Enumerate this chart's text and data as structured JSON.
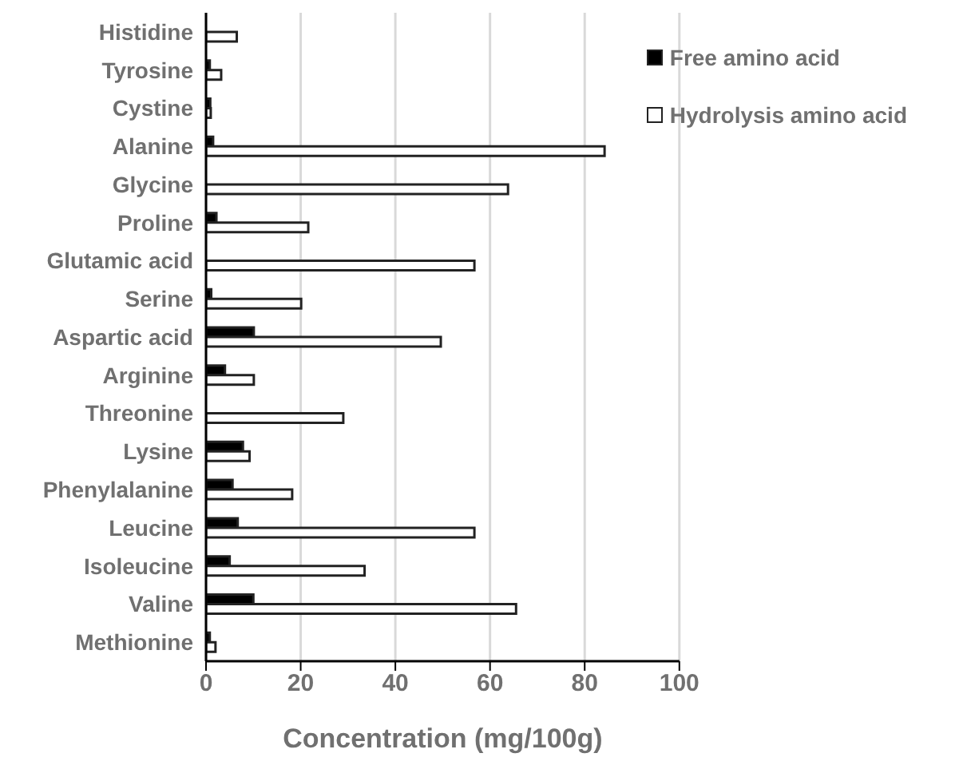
{
  "chart_data": {
    "type": "bar",
    "orientation": "horizontal",
    "xlabel": "Concentration (mg/100g)",
    "categories": [
      "Histidine",
      "Tyrosine",
      "Cystine",
      "Alanine",
      "Glycine",
      "Proline",
      "Glutamic acid",
      "Serine",
      "Aspartic acid",
      "Arginine",
      "Threonine",
      "Lysine",
      "Phenylalanine",
      "Leucine",
      "Isoleucine",
      "Valine",
      "Methionine"
    ],
    "series": [
      {
        "name": "Free amino acid",
        "color": "#000000",
        "values": [
          null,
          0.8,
          0.9,
          1.5,
          null,
          2.2,
          0,
          1.1,
          10.1,
          4.0,
          0,
          7.8,
          5.6,
          6.7,
          5.0,
          10.0,
          0.8
        ]
      },
      {
        "name": "Hydrolysis amino acid",
        "color": "#ffffff",
        "values": [
          6.5,
          3.2,
          1.0,
          84.2,
          63.8,
          21.6,
          56.7,
          20.1,
          49.6,
          10.1,
          29.0,
          9.2,
          18.2,
          56.7,
          33.5,
          65.5,
          2.0
        ]
      }
    ],
    "xlim": [
      0,
      100
    ],
    "xticks": [
      0,
      20,
      40,
      60,
      80,
      100
    ],
    "grid": "x",
    "legend": "top right"
  }
}
